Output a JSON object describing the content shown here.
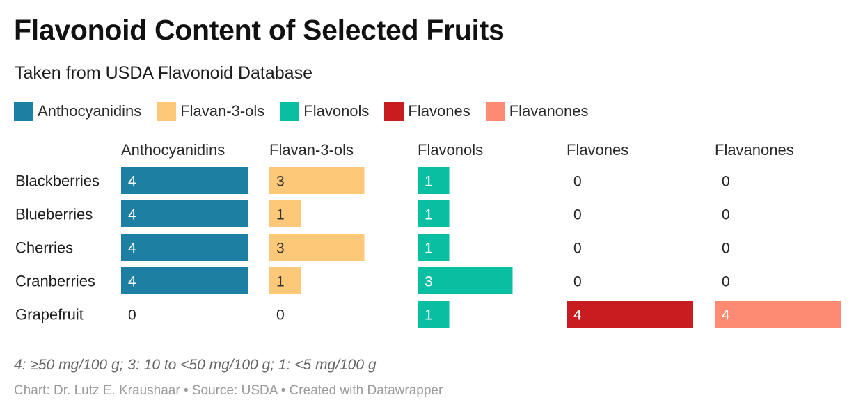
{
  "header": {
    "title": "Flavonoid Content of Selected Fruits",
    "subtitle": "Taken from USDA Flavonoid Database"
  },
  "legend": [
    {
      "label": "Anthocyanidins",
      "color": "#1d7fa1"
    },
    {
      "label": "Flavan-3-ols",
      "color": "#fdc979"
    },
    {
      "label": "Flavonols",
      "color": "#0abea1"
    },
    {
      "label": "Flavones",
      "color": "#c81d20"
    },
    {
      "label": "Flavanones",
      "color": "#fd8a72"
    }
  ],
  "chart_data": {
    "type": "bar",
    "layout": "small-multiples, horizontal bars",
    "categories": [
      "Blackberries",
      "Blueberries",
      "Cherries",
      "Cranberries",
      "Grapefruit"
    ],
    "series": [
      {
        "name": "Anthocyanidins",
        "color": "#1d7fa1",
        "values": [
          4,
          4,
          4,
          4,
          0
        ]
      },
      {
        "name": "Flavan-3-ols",
        "color": "#fdc979",
        "values": [
          3,
          1,
          3,
          1,
          0
        ]
      },
      {
        "name": "Flavonols",
        "color": "#0abea1",
        "values": [
          1,
          1,
          1,
          3,
          1
        ]
      },
      {
        "name": "Flavones",
        "color": "#c81d20",
        "values": [
          0,
          0,
          0,
          0,
          4
        ]
      },
      {
        "name": "Flavanones",
        "color": "#fd8a72",
        "values": [
          0,
          0,
          0,
          0,
          4
        ]
      }
    ],
    "xlim": [
      0,
      4
    ],
    "grid": false,
    "legend_position": "top"
  },
  "footer": {
    "note": "4: ≥50 mg/100 g; 3: 10 to <50 mg/100 g; 1: <5 mg/100 g",
    "credit": "Chart: Dr. Lutz E. Kraushaar • Source: USDA • Created with Datawrapper"
  }
}
